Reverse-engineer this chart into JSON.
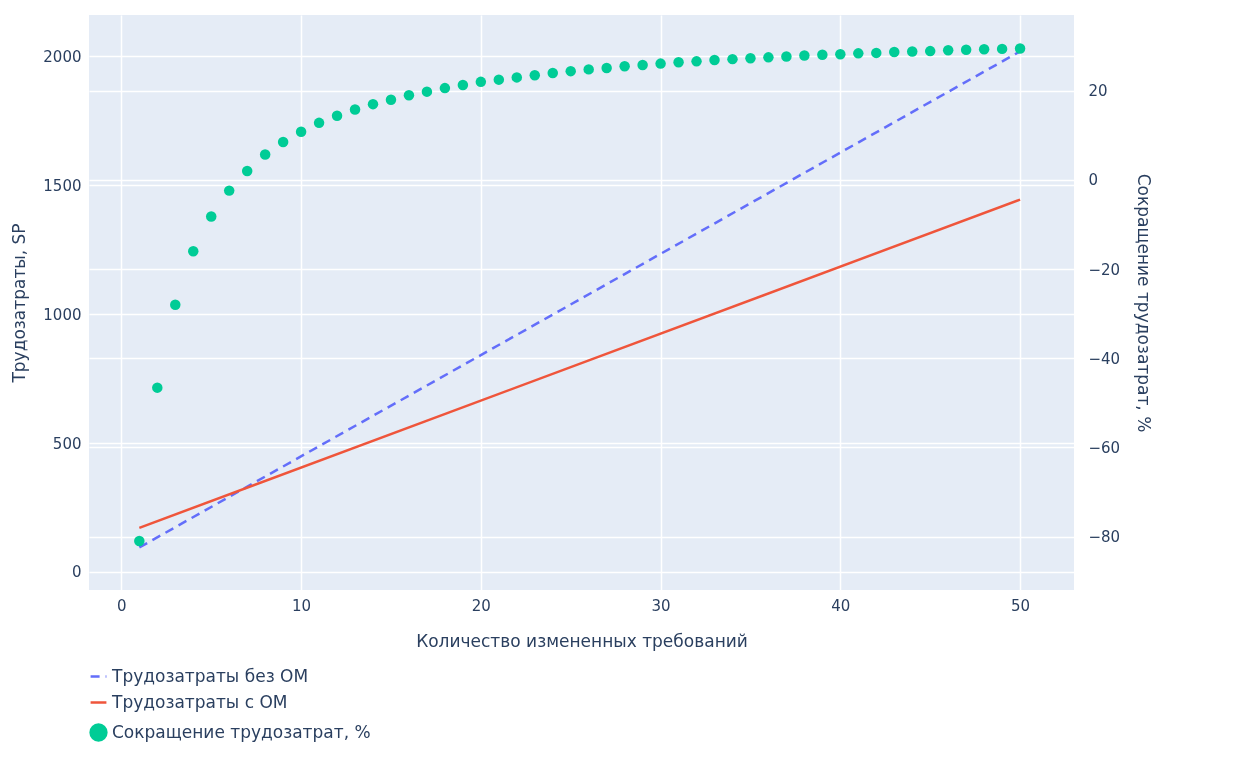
{
  "chart_data": {
    "type": "line",
    "xlabel": "Количество измененных требований",
    "ylabel": "Трудозатраты, SP",
    "y2label": "Сокращение трудозатрат, %",
    "xlim": [
      -1.8,
      53
    ],
    "xticks": [
      0,
      10,
      20,
      30,
      40,
      50
    ],
    "ylim": [
      -70,
      2160
    ],
    "yticks": [
      0,
      500,
      1000,
      1500,
      2000
    ],
    "y2lim": [
      -92,
      37
    ],
    "y2ticks": [
      -80,
      -60,
      -40,
      -20,
      0,
      20
    ],
    "grid": true,
    "legend": "bottom left",
    "series": [
      {
        "name": "Трудозатраты без ОМ",
        "line_style": "dashed",
        "color": "#636efa",
        "x": [
          1,
          50
        ],
        "values": [
          95,
          2019
        ]
      },
      {
        "name": "Трудозатраты с ОМ",
        "line_style": "solid",
        "color": "#ef553b",
        "x": [
          1,
          50
        ],
        "values": [
          171,
          1444
        ]
      },
      {
        "name": "Сокращение трудозатрат, %",
        "type": "scatter",
        "marker": "circle",
        "axis": "y2",
        "color": "#00cc96",
        "x": [
          1,
          2,
          3,
          4,
          5,
          6,
          7,
          8,
          9,
          10,
          11,
          12,
          13,
          14,
          15,
          16,
          17,
          18,
          19,
          20,
          21,
          22,
          23,
          24,
          25,
          26,
          27,
          28,
          29,
          30,
          31,
          32,
          33,
          34,
          35,
          36,
          37,
          38,
          39,
          40,
          41,
          42,
          43,
          44,
          45,
          46,
          47,
          48,
          49,
          50
        ],
        "values": [
          -81,
          -46.6,
          -28,
          -16,
          -8.2,
          -2.4,
          2,
          5.7,
          8.5,
          10.8,
          12.8,
          14.4,
          15.8,
          17,
          18,
          19,
          19.8,
          20.6,
          21.3,
          22,
          22.5,
          23,
          23.5,
          24,
          24.4,
          24.8,
          25.1,
          25.5,
          25.8,
          26.1,
          26.4,
          26.6,
          26.9,
          27.1,
          27.3,
          27.5,
          27.7,
          27.9,
          28.1,
          28.2,
          28.4,
          28.5,
          28.7,
          28.8,
          28.9,
          29.1,
          29.2,
          29.3,
          29.4,
          29.5
        ]
      }
    ]
  }
}
